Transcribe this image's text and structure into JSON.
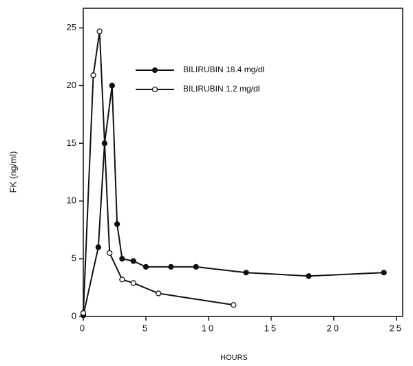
{
  "chart_data": {
    "type": "line",
    "x_label": "HOURS",
    "y_label": "FK (ng/ml)",
    "xlim": [
      0,
      25.5
    ],
    "ylim": [
      0,
      26.7
    ],
    "xticks": [
      0,
      5,
      10,
      15,
      20,
      25
    ],
    "yticks": [
      0,
      5,
      10,
      15,
      20,
      25
    ],
    "grid": false,
    "legend": "upper center",
    "series": [
      {
        "name": "BILIRUBIN 18.4 mg/dl",
        "color": "#111111",
        "marker": "filled",
        "x": [
          0,
          1.2,
          1.7,
          2.3,
          2.7,
          3.1,
          4,
          5,
          7,
          9,
          13,
          18,
          24
        ],
        "values": [
          0.1,
          6,
          15,
          20,
          8,
          5,
          4.8,
          4.3,
          4.3,
          4.3,
          3.8,
          3.5,
          3.8
        ]
      },
      {
        "name": "BILIRUBIN 1.2 mg/dl",
        "color": "#111111",
        "marker": "open",
        "x": [
          0,
          0.8,
          1.3,
          2.1,
          3.1,
          4,
          6,
          12
        ],
        "values": [
          0.3,
          20.9,
          24.7,
          5.5,
          3.2,
          2.9,
          2,
          1
        ]
      }
    ]
  }
}
